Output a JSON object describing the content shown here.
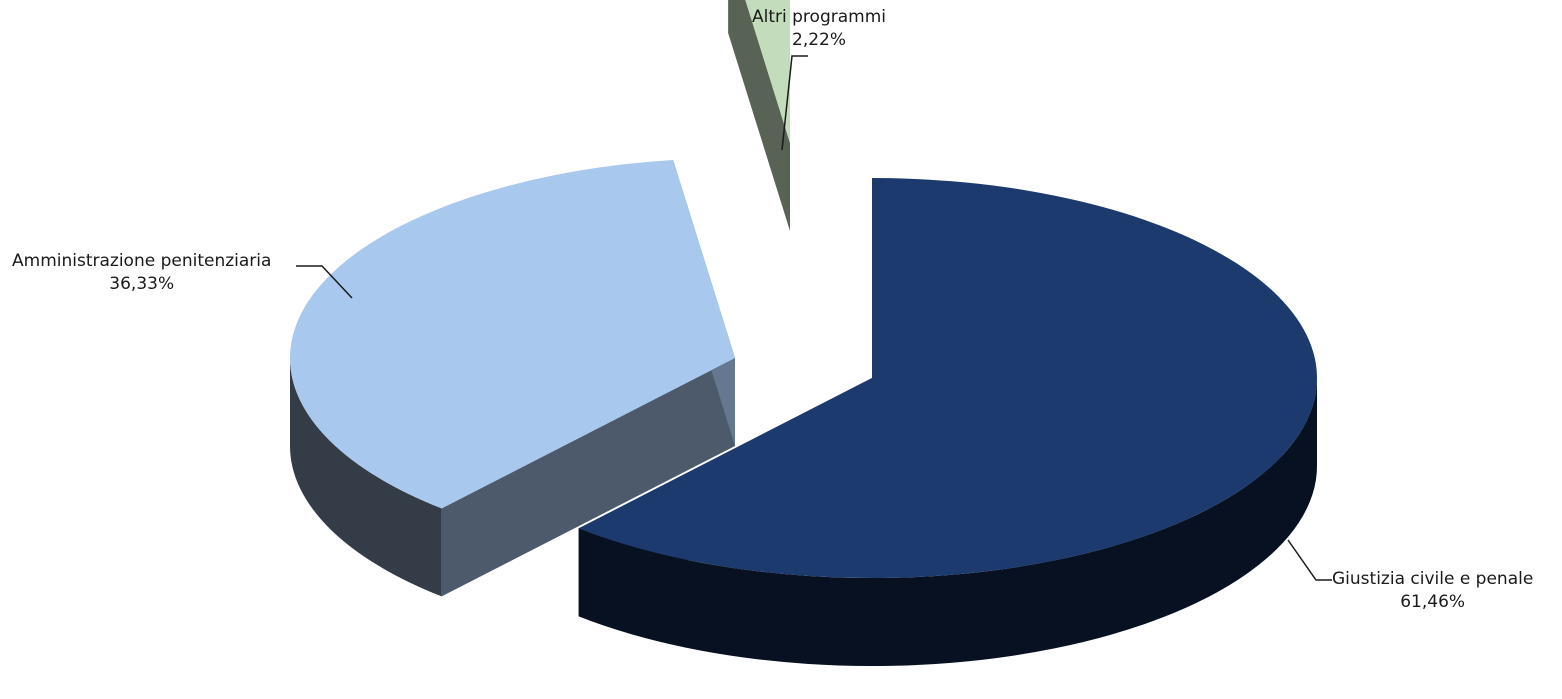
{
  "chart_data": {
    "type": "pie",
    "title": "",
    "slices": [
      {
        "label": "Giustizia civile e penale",
        "value_label": "61,46%",
        "value": 61.46,
        "color": "#1c3a6e"
      },
      {
        "label": "Amministrazione penitenziaria",
        "value_label": "36,33%",
        "value": 36.33,
        "color": "#a9c8ee"
      },
      {
        "label": "Altri programmi",
        "value_label": "2,22%",
        "value": 2.22,
        "color": "#c3dcbc"
      }
    ],
    "style": "3d-exploded"
  }
}
